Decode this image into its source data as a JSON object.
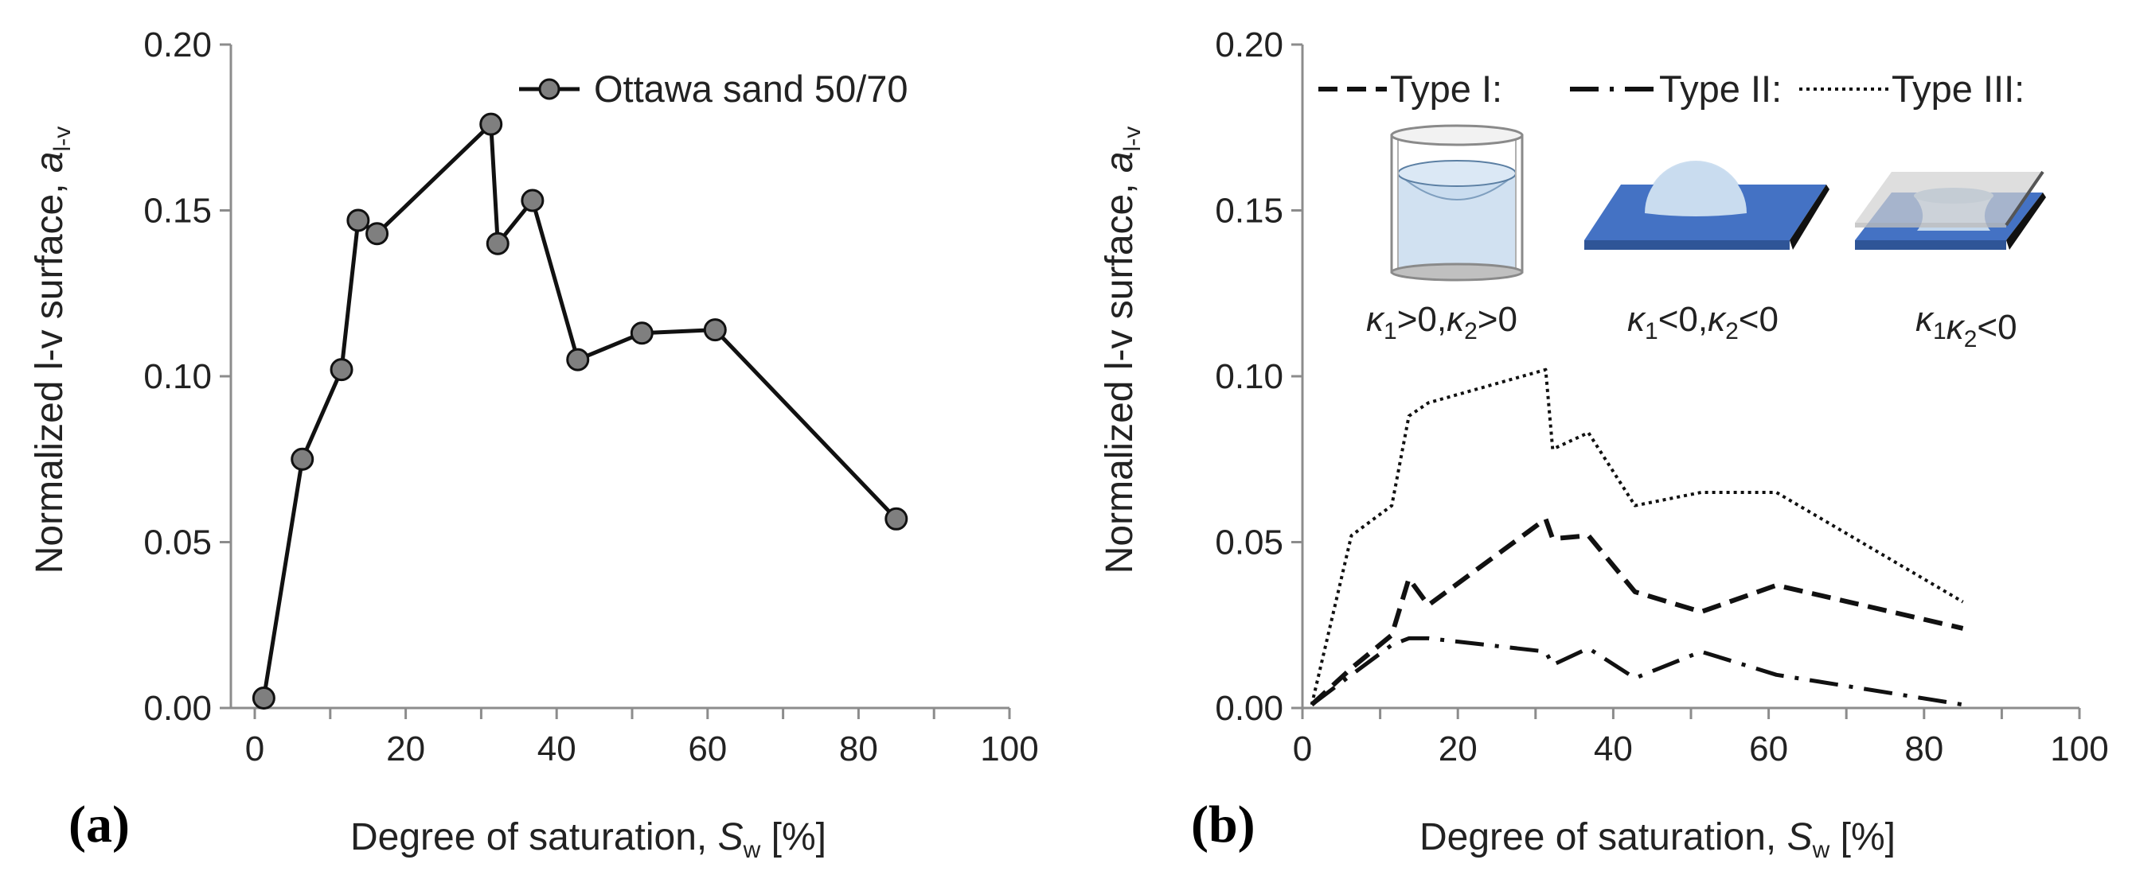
{
  "panel_labels": [
    "(a)",
    "(b)"
  ],
  "panels": {
    "a": {
      "x_axis_title": {
        "main": "Degree of saturation, ",
        "italic": "S",
        "sub": "w",
        "tail": " [%]"
      },
      "y_axis_title": {
        "main": "Normalized l-v surface, ",
        "italic": "a",
        "sub": "l-v"
      },
      "legend": "Ottawa sand 50/70"
    },
    "b": {
      "x_axis_title": {
        "main": "Degree of saturation, ",
        "italic": "S",
        "sub": "w",
        "tail": " [%]"
      },
      "y_axis_title": {
        "main": "Normalized l-v surface, ",
        "italic": "a",
        "sub": "l-v"
      },
      "legend": [
        "Type I:",
        "Type II:",
        "Type III:"
      ],
      "curvatures": [
        {
          "k1": "κ",
          "s1": "1",
          "m": ">0,",
          "k2": "κ",
          "s2": "2",
          "e": ">0"
        },
        {
          "k1": "κ",
          "s1": "1",
          "m": "<0,",
          "k2": "κ",
          "s2": "2",
          "e": "<0"
        },
        {
          "k1": "κ",
          "s1": "1",
          "m": "",
          "k2": "κ",
          "s2": "2",
          "e": "<0"
        }
      ],
      "colors": {
        "liquid": "#c9dcef",
        "plate": "#4472c4",
        "glass": "#d0d0d0"
      }
    }
  },
  "chart_data": [
    {
      "type": "line",
      "xlabel": "Degree of saturation, Sw [%]",
      "ylabel": "Normalized l-v surface, al-v",
      "xlim": [
        0,
        100
      ],
      "ylim": [
        0,
        0.2
      ],
      "xticks": [
        "0",
        "20",
        "40",
        "60",
        "80",
        "100"
      ],
      "yticks": [
        "0.00",
        "0.05",
        "0.10",
        "0.15",
        "0.20"
      ],
      "legend_position": "top-right",
      "series": [
        {
          "name": "Ottawa sand 50/70",
          "style": "solid-markers",
          "x": [
            1.2,
            6.3,
            11.5,
            13.7,
            16.2,
            31.3,
            32.2,
            36.8,
            42.8,
            51.3,
            61.0,
            85.0
          ],
          "y": [
            0.003,
            0.075,
            0.102,
            0.147,
            0.143,
            0.176,
            0.14,
            0.153,
            0.105,
            0.113,
            0.114,
            0.057
          ]
        }
      ]
    },
    {
      "type": "line",
      "xlabel": "Degree of saturation, Sw [%]",
      "ylabel": "Normalized l-v surface, al-v",
      "xlim": [
        0,
        100
      ],
      "ylim": [
        0,
        0.2
      ],
      "xticks": [
        "0",
        "20",
        "40",
        "60",
        "80",
        "100"
      ],
      "yticks": [
        "0.00",
        "0.05",
        "0.10",
        "0.15",
        "0.20"
      ],
      "legend_position": "top",
      "series": [
        {
          "name": "Type I:",
          "style": "dashed",
          "x": [
            1.2,
            6.3,
            11.5,
            13.7,
            16.2,
            31.3,
            32.2,
            36.8,
            42.8,
            51.3,
            61.0,
            85.0
          ],
          "y": [
            0.001,
            0.012,
            0.022,
            0.039,
            0.031,
            0.057,
            0.051,
            0.052,
            0.035,
            0.029,
            0.037,
            0.024
          ]
        },
        {
          "name": "Type II:",
          "style": "dash-dot",
          "x": [
            1.2,
            6.3,
            11.5,
            13.7,
            16.2,
            31.3,
            32.2,
            36.8,
            42.8,
            51.3,
            61.0,
            85.0
          ],
          "y": [
            0.001,
            0.01,
            0.019,
            0.021,
            0.021,
            0.017,
            0.013,
            0.018,
            0.009,
            0.017,
            0.01,
            0.001
          ]
        },
        {
          "name": "Type III:",
          "style": "dotted",
          "x": [
            1.2,
            6.3,
            11.5,
            13.7,
            16.2,
            31.3,
            32.2,
            36.8,
            42.8,
            51.3,
            61.0,
            85.0
          ],
          "y": [
            0.001,
            0.052,
            0.061,
            0.088,
            0.092,
            0.102,
            0.078,
            0.083,
            0.061,
            0.065,
            0.065,
            0.032
          ]
        }
      ]
    }
  ]
}
